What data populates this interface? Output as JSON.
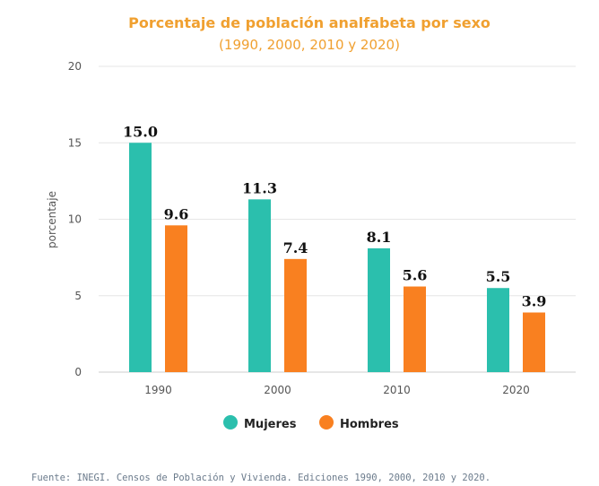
{
  "colors": {
    "title": "#f0a030",
    "mujeres": "#2bbfad",
    "hombres": "#f98020",
    "grid": "#e6e6e6"
  },
  "source": "Fuente:  INEGI. Censos de Población y Vivienda. Ediciones 1990, 2000, 2010 y 2020.",
  "chart_data": {
    "type": "bar",
    "title": "Porcentaje de población analfabeta por sexo",
    "subtitle": "(1990, 2000, 2010 y 2020)",
    "xlabel": "",
    "ylabel": "porcentaje",
    "ylim": [
      0,
      20
    ],
    "yticks": [
      "0",
      "5",
      "10",
      "15",
      "20"
    ],
    "grid": true,
    "legend": "bottom",
    "categories": [
      "1990",
      "2000",
      "2010",
      "2020"
    ],
    "series": [
      {
        "name": "Mujeres",
        "values": [
          15.0,
          11.3,
          8.1,
          5.5
        ],
        "labels": [
          "15.0",
          "11.3",
          "8.1",
          "5.5"
        ]
      },
      {
        "name": "Hombres",
        "values": [
          9.6,
          7.4,
          5.6,
          3.9
        ],
        "labels": [
          "9.6",
          "7.4",
          "5.6",
          "3.9"
        ]
      }
    ]
  }
}
